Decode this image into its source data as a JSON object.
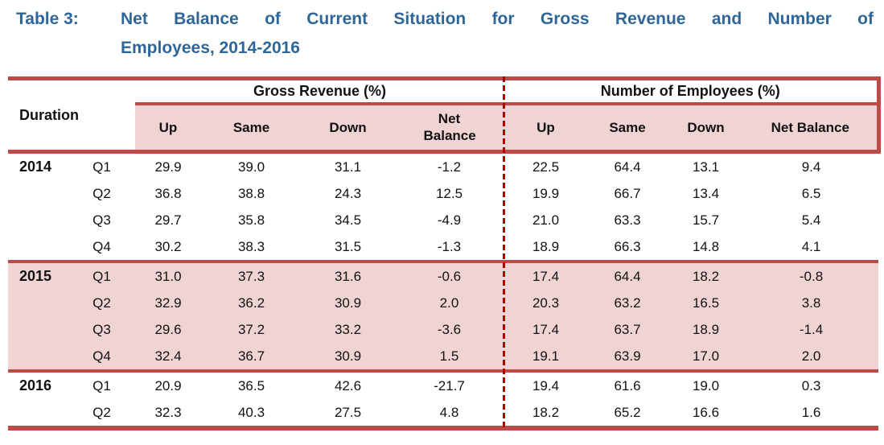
{
  "title": {
    "label": "Table 3:",
    "line1": "Net Balance of Current Situation for Gross Revenue and Number of",
    "line2": "Employees, 2014-2016"
  },
  "colors": {
    "accent_red": "#be4a47",
    "row_pink": "#f0d3d3",
    "dotted_divider_red": "#b00000",
    "title_blue": "#2f6699"
  },
  "table": {
    "duration_header": "Duration",
    "groups": [
      {
        "label": "Gross Revenue (%)",
        "columns": [
          "Up",
          "Same",
          "Down",
          "Net Balance"
        ]
      },
      {
        "label": "Number of Employees (%)",
        "columns": [
          "Up",
          "Same",
          "Down",
          "Net Balance"
        ]
      }
    ],
    "rows": [
      {
        "year": "2014",
        "quarter": "Q1",
        "gr": {
          "up": "29.9",
          "same": "39.0",
          "down": "31.1",
          "net": "-1.2"
        },
        "emp": {
          "up": "22.5",
          "same": "64.4",
          "down": "13.1",
          "net": "9.4"
        }
      },
      {
        "year": "",
        "quarter": "Q2",
        "gr": {
          "up": "36.8",
          "same": "38.8",
          "down": "24.3",
          "net": "12.5"
        },
        "emp": {
          "up": "19.9",
          "same": "66.7",
          "down": "13.4",
          "net": "6.5"
        }
      },
      {
        "year": "",
        "quarter": "Q3",
        "gr": {
          "up": "29.7",
          "same": "35.8",
          "down": "34.5",
          "net": "-4.9"
        },
        "emp": {
          "up": "21.0",
          "same": "63.3",
          "down": "15.7",
          "net": "5.4"
        }
      },
      {
        "year": "",
        "quarter": "Q4",
        "gr": {
          "up": "30.2",
          "same": "38.3",
          "down": "31.5",
          "net": "-1.3"
        },
        "emp": {
          "up": "18.9",
          "same": "66.3",
          "down": "14.8",
          "net": "4.1"
        }
      },
      {
        "year": "2015",
        "quarter": "Q1",
        "gr": {
          "up": "31.0",
          "same": "37.3",
          "down": "31.6",
          "net": "-0.6"
        },
        "emp": {
          "up": "17.4",
          "same": "64.4",
          "down": "18.2",
          "net": "-0.8"
        }
      },
      {
        "year": "",
        "quarter": "Q2",
        "gr": {
          "up": "32.9",
          "same": "36.2",
          "down": "30.9",
          "net": "2.0"
        },
        "emp": {
          "up": "20.3",
          "same": "63.2",
          "down": "16.5",
          "net": "3.8"
        }
      },
      {
        "year": "",
        "quarter": "Q3",
        "gr": {
          "up": "29.6",
          "same": "37.2",
          "down": "33.2",
          "net": "-3.6"
        },
        "emp": {
          "up": "17.4",
          "same": "63.7",
          "down": "18.9",
          "net": "-1.4"
        }
      },
      {
        "year": "",
        "quarter": "Q4",
        "gr": {
          "up": "32.4",
          "same": "36.7",
          "down": "30.9",
          "net": "1.5"
        },
        "emp": {
          "up": "19.1",
          "same": "63.9",
          "down": "17.0",
          "net": "2.0"
        }
      },
      {
        "year": "2016",
        "quarter": "Q1",
        "gr": {
          "up": "20.9",
          "same": "36.5",
          "down": "42.6",
          "net": "-21.7"
        },
        "emp": {
          "up": "19.4",
          "same": "61.6",
          "down": "19.0",
          "net": "0.3"
        }
      },
      {
        "year": "",
        "quarter": "Q2",
        "gr": {
          "up": "32.3",
          "same": "40.3",
          "down": "27.5",
          "net": "4.8"
        },
        "emp": {
          "up": "18.2",
          "same": "65.2",
          "down": "16.6",
          "net": "1.6"
        }
      }
    ]
  }
}
